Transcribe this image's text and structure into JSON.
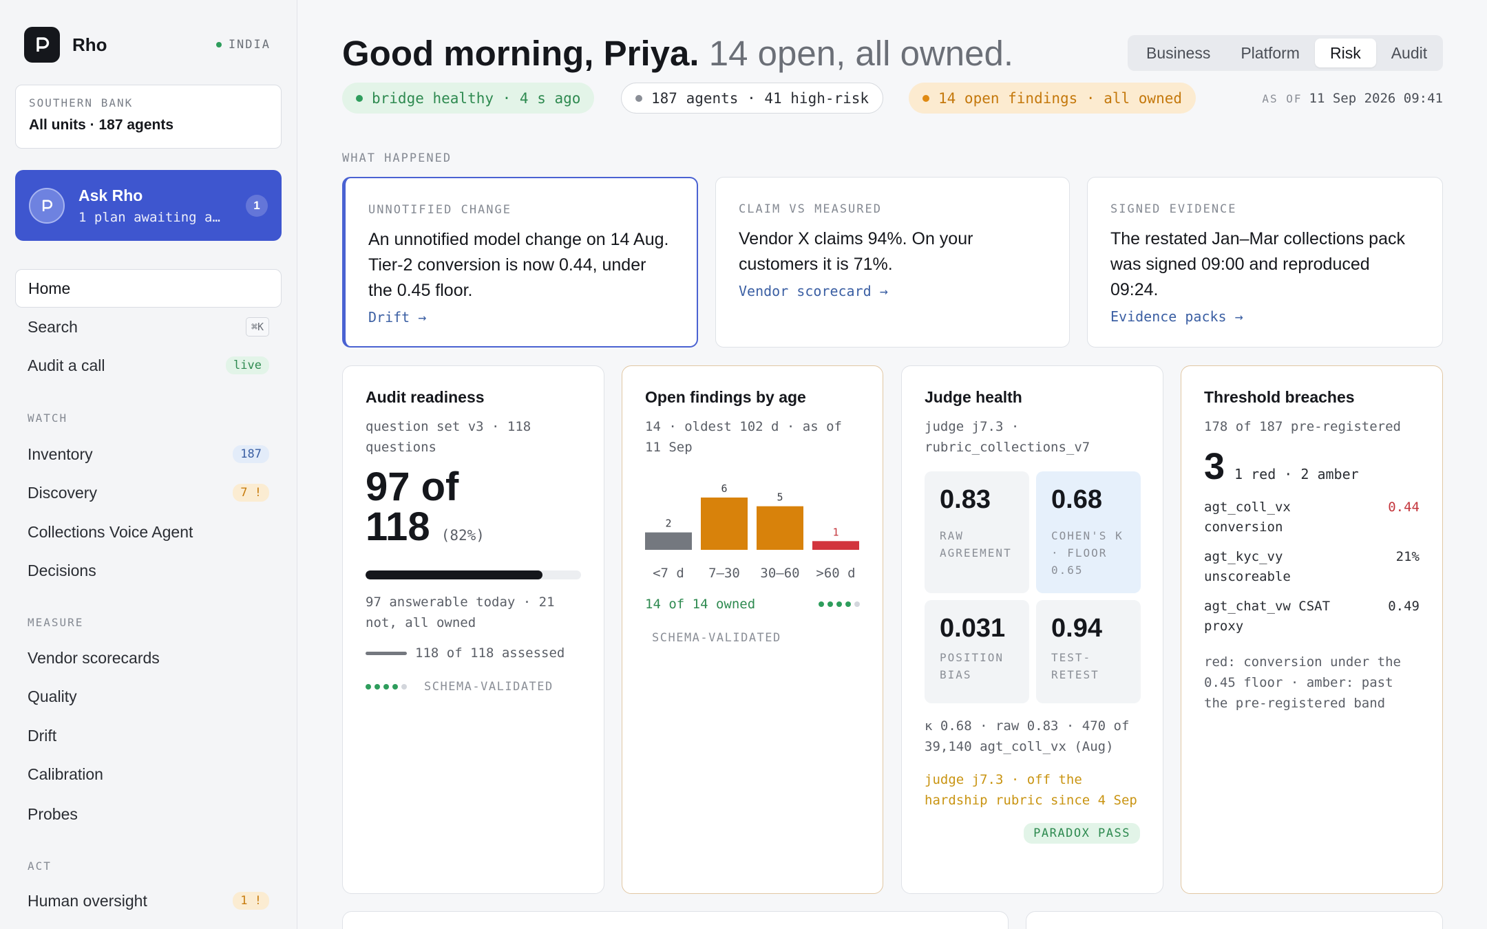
{
  "sidebar": {
    "brand": "Rho",
    "region": "INDIA",
    "bank": {
      "label": "SOUTHERN BANK",
      "value": "All units · 187 agents"
    },
    "ask": {
      "title": "Ask Rho",
      "subtitle": "1 plan awaiting a…",
      "badge": "1"
    },
    "nav_top": [
      {
        "label": "Home"
      },
      {
        "label": "Search",
        "kbd": "⌘K"
      },
      {
        "label": "Audit a call",
        "badge": "live"
      }
    ],
    "sections": [
      {
        "label": "WATCH"
      },
      {
        "label": "MEASURE"
      },
      {
        "label": "ACT"
      }
    ],
    "watch": [
      {
        "label": "Inventory",
        "badge": "187"
      },
      {
        "label": "Discovery",
        "badge": "7 !"
      },
      {
        "label": "Collections Voice Agent"
      },
      {
        "label": "Decisions"
      }
    ],
    "measure": [
      {
        "label": "Vendor scorecards"
      },
      {
        "label": "Quality"
      },
      {
        "label": "Drift"
      },
      {
        "label": "Calibration"
      },
      {
        "label": "Probes"
      }
    ],
    "act": [
      {
        "label": "Human oversight",
        "badge": "1 !"
      }
    ]
  },
  "header": {
    "greeting": "Good morning, Priya.",
    "summary": "14 open, all owned.",
    "tabs": [
      "Business",
      "Platform",
      "Risk",
      "Audit"
    ],
    "active_tab": "Risk",
    "chips": [
      "bridge healthy · 4 s ago",
      "187 agents · 41 high-risk",
      "14 open findings · all owned"
    ],
    "asof_label": "AS OF",
    "asof_value": "11 Sep 2026 09:41"
  },
  "what_happened": {
    "label": "WHAT HAPPENED",
    "cards": [
      {
        "label": "UNNOTIFIED CHANGE",
        "text": "An unnotified model change on 14 Aug. Tier-2 conversion is now 0.44, under the 0.45 floor.",
        "link": "Drift →"
      },
      {
        "label": "CLAIM VS MEASURED",
        "text": "Vendor X claims 94%. On your customers it is 71%.",
        "link": "Vendor scorecard →"
      },
      {
        "label": "SIGNED EVIDENCE",
        "text": "The restated Jan–Mar collections pack was signed 09:00 and reproduced 09:24.",
        "link": "Evidence packs →"
      }
    ]
  },
  "audit_readiness": {
    "title": "Audit readiness",
    "subtitle": "question set v3 · 118 questions",
    "big_line1": "97 of",
    "big_line2": "118",
    "pct": "(82%)",
    "progress": 0.82,
    "note": "97 answerable today · 21 not, all owned",
    "assessed": "118 of 118 assessed",
    "validated": "SCHEMA-VALIDATED"
  },
  "findings": {
    "title": "Open findings by age",
    "subtitle": "14 · oldest 102 d · as of 11 Sep",
    "owned": "14 of 14 owned",
    "validated": "SCHEMA-VALIDATED"
  },
  "chart_data": {
    "type": "bar",
    "categories": [
      "<7 d",
      "7–30",
      "30–60",
      ">60 d"
    ],
    "values": [
      2,
      6,
      5,
      1
    ],
    "colors": [
      "#74787f",
      "#d8820b",
      "#d8820b",
      "#d2343d"
    ],
    "ylim": [
      0,
      6
    ]
  },
  "judge": {
    "title": "Judge health",
    "subtitle": "judge j7.3 · rubric_collections_v7",
    "tiles": [
      {
        "value": "0.83",
        "label": "RAW AGREEMENT"
      },
      {
        "value": "0.68",
        "label": "COHEN'S K · FLOOR 0.65"
      },
      {
        "value": "0.031",
        "label": "POSITION BIAS"
      },
      {
        "value": "0.94",
        "label": "TEST-RETEST"
      }
    ],
    "note": "κ 0.68 · raw 0.83 · 470 of 39,140 agt_coll_vx (Aug)",
    "warning": "judge j7.3 · off the hardship rubric since 4 Sep",
    "badge": "PARADOX PASS"
  },
  "breaches": {
    "title": "Threshold breaches",
    "subtitle": "178 of 187 pre-registered",
    "count": "3",
    "count_detail": "1 red · 2 amber",
    "rows": [
      {
        "name": "agt_coll_vx conversion",
        "value": "0.44",
        "color": "#c4363d"
      },
      {
        "name": "agt_kyc_vy unscoreable",
        "value": "21%",
        "color": "#15171c"
      },
      {
        "name": "agt_chat_vw CSAT proxy",
        "value": "0.49",
        "color": "#15171c"
      }
    ],
    "legend": "red: conversion under the 0.45 floor · amber: past the pre-registered band"
  }
}
